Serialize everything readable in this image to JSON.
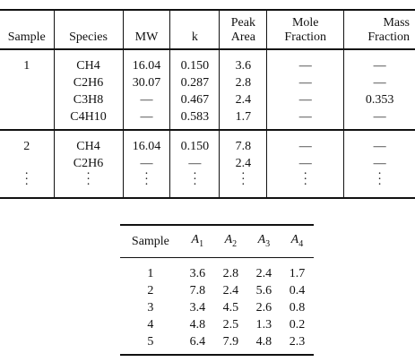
{
  "table1": {
    "headers": {
      "sample": "Sample",
      "species": "Species",
      "mw": "MW",
      "k": "k",
      "peak_area_l1": "Peak",
      "peak_area_l2": "Area",
      "mole_l1": "Mole",
      "mole_l2": "Fraction",
      "mass_l1": "Mass",
      "mass_l2": "Fraction"
    },
    "group1": {
      "sample": "1",
      "rows": [
        {
          "species": "CH4",
          "mw": "16.04",
          "k": "0.150",
          "peak": "3.6",
          "mole": "—",
          "mass": "—"
        },
        {
          "species": "C2H6",
          "mw": "30.07",
          "k": "0.287",
          "peak": "2.8",
          "mole": "—",
          "mass": "—"
        },
        {
          "species": "C3H8",
          "mw": "—",
          "k": "0.467",
          "peak": "2.4",
          "mole": "—",
          "mass": "0.353"
        },
        {
          "species": "C4H10",
          "mw": "—",
          "k": "0.583",
          "peak": "1.7",
          "mole": "—",
          "mass": "—"
        }
      ]
    },
    "group2": {
      "sample": "2",
      "rows": [
        {
          "species": "CH4",
          "mw": "16.04",
          "k": "0.150",
          "peak": "7.8",
          "mole": "—",
          "mass": "—"
        },
        {
          "species": "C2H6",
          "mw": "—",
          "k": "—",
          "peak": "2.4",
          "mole": "—",
          "mass": "—"
        }
      ]
    }
  },
  "table2": {
    "headers": {
      "sample": "Sample",
      "a_letter": "A",
      "a1_sub": "1",
      "a2_sub": "2",
      "a3_sub": "3",
      "a4_sub": "4"
    },
    "rows": [
      {
        "sample": "1",
        "a1": "3.6",
        "a2": "2.8",
        "a3": "2.4",
        "a4": "1.7"
      },
      {
        "sample": "2",
        "a1": "7.8",
        "a2": "2.4",
        "a3": "5.6",
        "a4": "0.4"
      },
      {
        "sample": "3",
        "a1": "3.4",
        "a2": "4.5",
        "a3": "2.6",
        "a4": "0.8"
      },
      {
        "sample": "4",
        "a1": "4.8",
        "a2": "2.5",
        "a3": "1.3",
        "a4": "0.2"
      },
      {
        "sample": "5",
        "a1": "6.4",
        "a2": "7.9",
        "a3": "4.8",
        "a4": "2.3"
      }
    ]
  }
}
